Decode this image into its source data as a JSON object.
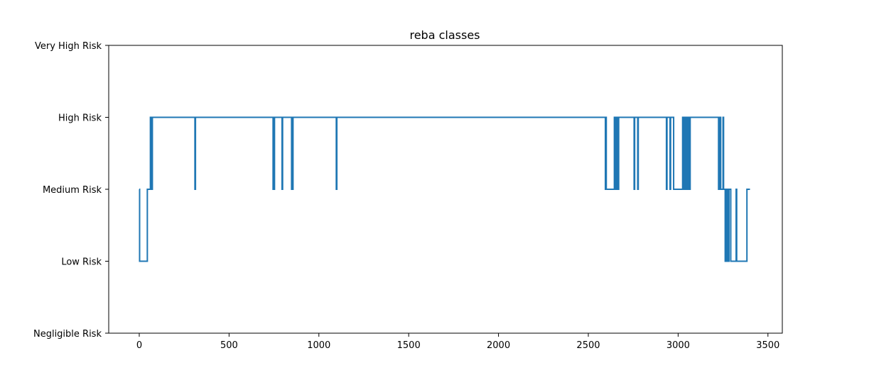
{
  "chart_data": {
    "type": "line",
    "title": "reba classes",
    "xlabel": "",
    "ylabel": "",
    "xlim": [
      -170,
      3580
    ],
    "ylim": [
      0,
      4
    ],
    "x_ticks": [
      0,
      500,
      1000,
      1500,
      2000,
      2500,
      3000,
      3500
    ],
    "y_ticks": [
      0,
      1,
      2,
      3,
      4
    ],
    "y_tick_labels": [
      "Negligible Risk",
      "Low Risk",
      "Medium Risk",
      "High Risk",
      "Very High Risk"
    ],
    "grid": false,
    "line_color": "#1f77b4",
    "series": [
      {
        "step_points": [
          [
            0,
            2
          ],
          [
            2,
            1
          ],
          [
            45,
            2
          ],
          [
            62,
            3
          ],
          [
            65,
            2
          ],
          [
            68,
            3
          ],
          [
            70,
            2
          ],
          [
            73,
            3
          ],
          [
            310,
            2
          ],
          [
            313,
            3
          ],
          [
            745,
            2
          ],
          [
            748,
            3
          ],
          [
            750,
            2
          ],
          [
            753,
            3
          ],
          [
            795,
            2
          ],
          [
            798,
            3
          ],
          [
            848,
            2
          ],
          [
            851,
            3
          ],
          [
            853,
            2
          ],
          [
            856,
            3
          ],
          [
            1097,
            2
          ],
          [
            1100,
            3
          ],
          [
            2595,
            2
          ],
          [
            2598,
            3
          ],
          [
            2600,
            2
          ],
          [
            2645,
            3
          ],
          [
            2648,
            2
          ],
          [
            2651,
            3
          ],
          [
            2654,
            2
          ],
          [
            2657,
            3
          ],
          [
            2660,
            2
          ],
          [
            2663,
            3
          ],
          [
            2666,
            2
          ],
          [
            2669,
            3
          ],
          [
            2755,
            2
          ],
          [
            2758,
            3
          ],
          [
            2775,
            2
          ],
          [
            2778,
            3
          ],
          [
            2935,
            2
          ],
          [
            2938,
            3
          ],
          [
            2955,
            2
          ],
          [
            2958,
            3
          ],
          [
            2975,
            2
          ],
          [
            3025,
            3
          ],
          [
            3028,
            2
          ],
          [
            3031,
            3
          ],
          [
            3034,
            2
          ],
          [
            3037,
            3
          ],
          [
            3040,
            2
          ],
          [
            3043,
            3
          ],
          [
            3046,
            2
          ],
          [
            3049,
            3
          ],
          [
            3052,
            2
          ],
          [
            3055,
            3
          ],
          [
            3058,
            2
          ],
          [
            3061,
            3
          ],
          [
            3064,
            2
          ],
          [
            3067,
            3
          ],
          [
            3225,
            2
          ],
          [
            3228,
            3
          ],
          [
            3231,
            2
          ],
          [
            3234,
            3
          ],
          [
            3237,
            2
          ],
          [
            3250,
            3
          ],
          [
            3253,
            2
          ],
          [
            3262,
            1
          ],
          [
            3265,
            2
          ],
          [
            3268,
            1
          ],
          [
            3271,
            2
          ],
          [
            3274,
            1
          ],
          [
            3277,
            2
          ],
          [
            3280,
            1
          ],
          [
            3283,
            2
          ],
          [
            3290,
            2
          ],
          [
            3293,
            1
          ],
          [
            3320,
            1
          ],
          [
            3323,
            2
          ],
          [
            3326,
            1
          ],
          [
            3380,
            1
          ],
          [
            3383,
            2
          ],
          [
            3400,
            2
          ]
        ]
      }
    ]
  }
}
